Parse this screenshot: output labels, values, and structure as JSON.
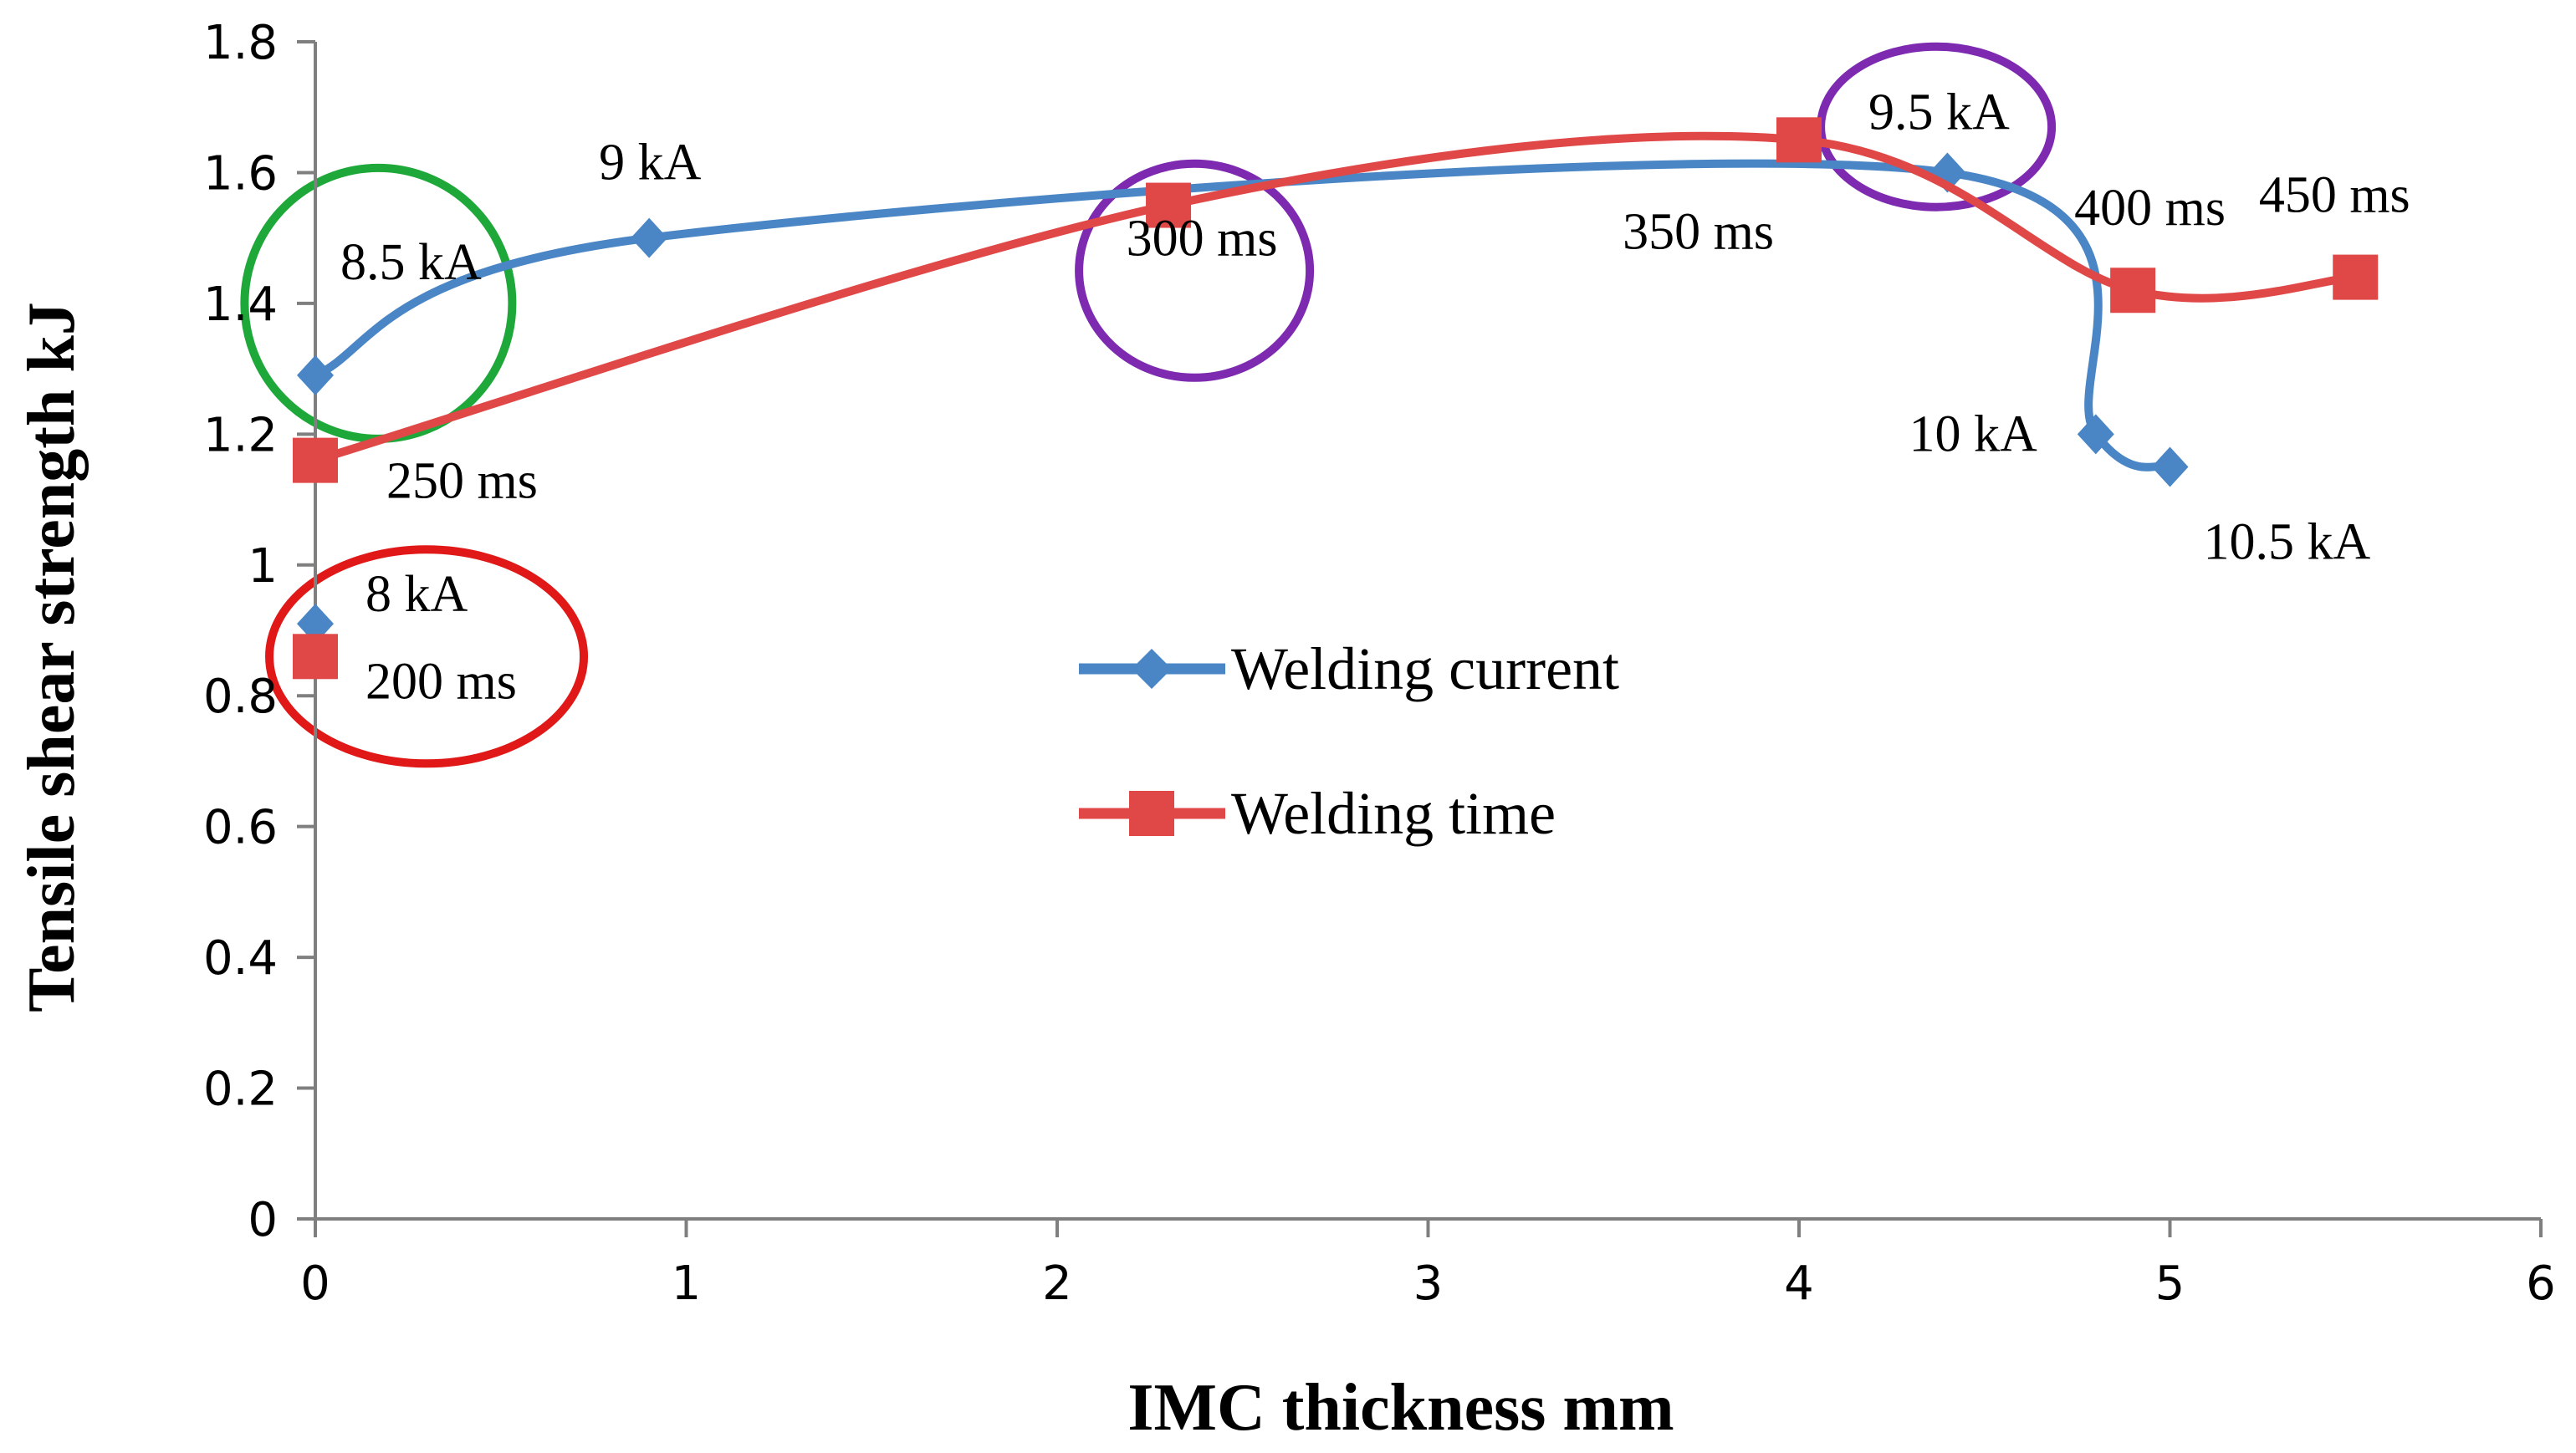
{
  "chart_data": {
    "type": "line",
    "title": "",
    "xlabel": "IMC thickness  mm",
    "ylabel": "Tensile shear strength   kJ",
    "xlim": [
      0,
      6
    ],
    "ylim": [
      0,
      1.8
    ],
    "xticks": [
      "0",
      "1",
      "2",
      "3",
      "4",
      "5",
      "6"
    ],
    "yticks": [
      "0",
      "0.2",
      "0.4",
      "0.6",
      "0.8",
      "1",
      "1.2",
      "1.4",
      "1.6",
      "1.8"
    ],
    "grid": false,
    "legend_position": "center",
    "series": [
      {
        "name": "Welding current",
        "color": "#4a86c5",
        "marker": "diamond",
        "smooth": true,
        "points": [
          {
            "x": 0,
            "y": 0.91,
            "label": "8 kA"
          },
          {
            "x": 0,
            "y": 1.29,
            "label": "8.5 kA"
          },
          {
            "x": 0.9,
            "y": 1.5,
            "label": "9 kA"
          },
          {
            "x": 4.4,
            "y": 1.6,
            "label": "9.5 kA"
          },
          {
            "x": 4.8,
            "y": 1.2,
            "label": "10 kA"
          },
          {
            "x": 5.0,
            "y": 1.15,
            "label": "10.5 kA"
          }
        ]
      },
      {
        "name": "Welding time",
        "color": "#e04848",
        "marker": "square",
        "smooth": true,
        "points": [
          {
            "x": 0,
            "y": 0.86,
            "label": "200 ms"
          },
          {
            "x": 0,
            "y": 1.16,
            "label": "250 ms"
          },
          {
            "x": 2.3,
            "y": 1.55,
            "label": "300 ms"
          },
          {
            "x": 4.0,
            "y": 1.65,
            "label": "350 ms"
          },
          {
            "x": 4.9,
            "y": 1.42,
            "label": "400 ms"
          },
          {
            "x": 5.5,
            "y": 1.44,
            "label": "450 ms"
          }
        ]
      }
    ],
    "annotations": [
      {
        "shape": "circle",
        "color": "#e01818",
        "cx": 0.3,
        "cy": 0.86
      },
      {
        "shape": "circle",
        "color": "#1fa83a",
        "cx": 0.17,
        "cy": 1.4
      },
      {
        "shape": "circle",
        "color": "#7d2ab0",
        "cx": 2.37,
        "cy": 1.45
      },
      {
        "shape": "circle",
        "color": "#7d2ab0",
        "cx": 4.37,
        "cy": 1.67
      }
    ]
  }
}
